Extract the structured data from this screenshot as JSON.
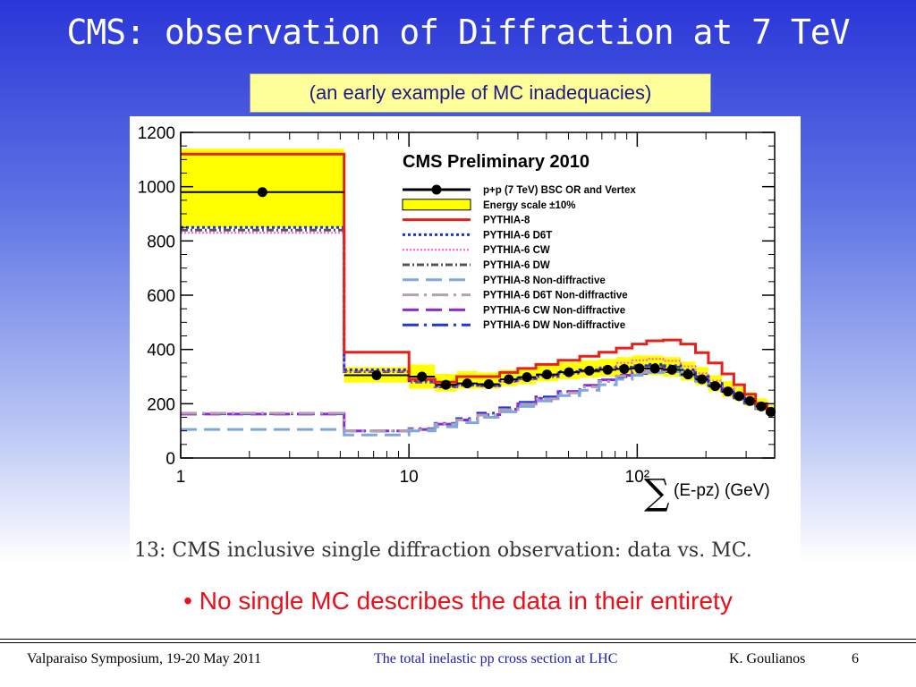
{
  "slide": {
    "title": "CMS: observation of Diffraction at 7 TeV",
    "subtitle": "(an early example of MC inadequacies)",
    "caption": "13: CMS inclusive single diffraction observation: data vs. MC.",
    "bullet": "• No single MC describes the data in their entirety"
  },
  "footer": {
    "left": "Valparaiso Symposium, 19-20 May 2011",
    "center": "The total inelastic pp cross section at LHC",
    "author": "K. Goulianos",
    "page": "6"
  },
  "chart_data": {
    "type": "line",
    "title": "CMS Preliminary 2010",
    "xlabel": "∑(E-pz) (GeV)",
    "ylabel": "",
    "xscale": "log",
    "xlim": [
      1,
      400
    ],
    "ylim": [
      0,
      1200
    ],
    "xticks": [
      "1",
      "10",
      "10²"
    ],
    "yticks": [
      0,
      200,
      400,
      600,
      800,
      1000,
      1200
    ],
    "legend_position": "top-right",
    "bin_edges": [
      1,
      5.2,
      10,
      13,
      16.2,
      20,
      25,
      30,
      36,
      45,
      56,
      68,
      81,
      95,
      110,
      130,
      155,
      180,
      205,
      235,
      265,
      295,
      330,
      370,
      400
    ],
    "series": [
      {
        "name": "p+p (7 TeV) BSC OR and Vertex",
        "style": "data",
        "color": "#000000",
        "values": [
          980,
          305,
          300,
          270,
          275,
          272,
          290,
          298,
          308,
          316,
          322,
          325,
          328,
          330,
          330,
          325,
          308,
          290,
          265,
          245,
          228,
          210,
          190,
          170
        ]
      },
      {
        "name": "Energy scale ±10%",
        "style": "band",
        "color": "#ffff00",
        "low": [
          850,
          278,
          255,
          245,
          255,
          255,
          265,
          272,
          282,
          290,
          296,
          300,
          302,
          305,
          305,
          300,
          285,
          268,
          245,
          225,
          210,
          193,
          175,
          155
        ],
        "high": [
          1140,
          335,
          345,
          310,
          320,
          315,
          325,
          335,
          345,
          353,
          360,
          365,
          372,
          378,
          378,
          372,
          355,
          335,
          305,
          283,
          262,
          242,
          220,
          195
        ]
      },
      {
        "name": "PYTHIA-8",
        "style": "solid",
        "color": "#e8201a",
        "values": [
          1120,
          390,
          290,
          280,
          300,
          300,
          315,
          330,
          345,
          360,
          375,
          390,
          405,
          420,
          432,
          435,
          420,
          388,
          350,
          310,
          270,
          235,
          200,
          175
        ]
      },
      {
        "name": "PYTHIA-6 D6T",
        "style": "dotted",
        "color": "#1a32e0",
        "values": [
          850,
          325,
          285,
          265,
          270,
          268,
          285,
          295,
          305,
          318,
          325,
          330,
          335,
          340,
          345,
          340,
          325,
          300,
          275,
          250,
          230,
          210,
          190,
          170
        ]
      },
      {
        "name": "PYTHIA-6 CW",
        "style": "pinkdot",
        "color": "#ff55dd",
        "values": [
          830,
          320,
          282,
          262,
          268,
          265,
          282,
          292,
          302,
          315,
          325,
          335,
          350,
          360,
          365,
          358,
          338,
          312,
          285,
          258,
          236,
          215,
          192,
          172
        ]
      },
      {
        "name": "PYTHIA-6 DW",
        "style": "dashdot",
        "color": "#555555",
        "values": [
          840,
          318,
          280,
          262,
          268,
          266,
          282,
          292,
          300,
          312,
          320,
          326,
          330,
          335,
          340,
          335,
          320,
          296,
          270,
          246,
          226,
          206,
          186,
          166
        ]
      },
      {
        "name": "PYTHIA-8 Non-diffractive",
        "style": "longdash",
        "color": "#7fa6dd",
        "values": [
          105,
          85,
          100,
          115,
          130,
          150,
          170,
          190,
          210,
          230,
          250,
          270,
          290,
          305,
          315,
          318,
          305,
          285,
          265,
          245,
          225,
          205,
          185,
          168
        ]
      },
      {
        "name": "PYTHIA-6 D6T Non-diffractive",
        "style": "longdashdot",
        "color": "#b8a0a8",
        "values": [
          165,
          100,
          105,
          125,
          140,
          158,
          178,
          198,
          218,
          240,
          262,
          282,
          302,
          315,
          322,
          322,
          308,
          288,
          268,
          246,
          225,
          205,
          184,
          165
        ]
      },
      {
        "name": "PYTHIA-6 CW Non-diffractive",
        "style": "longdash",
        "color": "#8a2be2",
        "values": [
          162,
          100,
          105,
          125,
          140,
          160,
          180,
          200,
          220,
          245,
          268,
          288,
          305,
          318,
          325,
          325,
          310,
          290,
          268,
          246,
          224,
          204,
          184,
          165
        ]
      },
      {
        "name": "PYTHIA-6 DW Non-diffractive",
        "style": "longdashdot",
        "color": "#1a3ad8",
        "values": [
          163,
          100,
          108,
          128,
          145,
          165,
          185,
          205,
          225,
          245,
          265,
          285,
          300,
          312,
          318,
          318,
          304,
          284,
          264,
          242,
          222,
          202,
          182,
          164
        ]
      }
    ]
  }
}
